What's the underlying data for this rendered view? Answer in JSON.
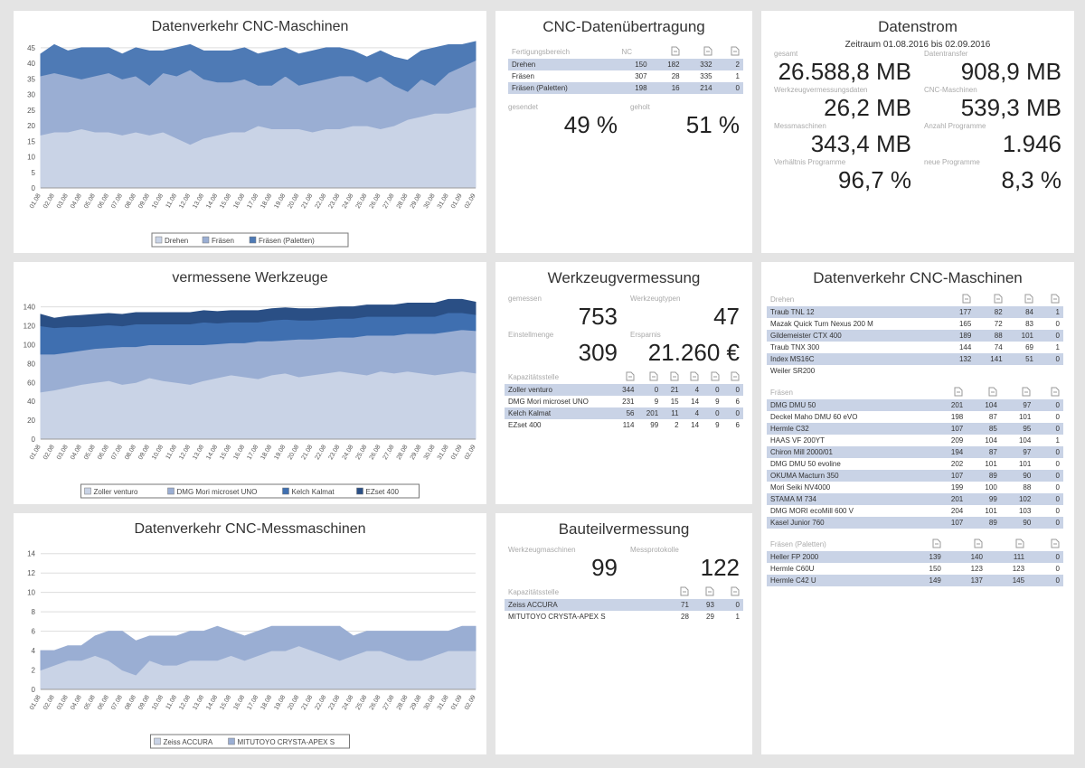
{
  "chart_data": [
    {
      "type": "area",
      "title": "Datenverkehr CNC-Maschinen",
      "categories": [
        "01.08",
        "02.08",
        "03.08",
        "04.08",
        "05.08",
        "06.08",
        "07.08",
        "08.08",
        "09.08",
        "10.08",
        "11.08",
        "12.08",
        "13.08",
        "14.08",
        "15.08",
        "16.08",
        "17.08",
        "18.08",
        "19.08",
        "20.08",
        "21.08",
        "22.08",
        "23.08",
        "24.08",
        "25.08",
        "26.08",
        "27.08",
        "28.08",
        "29.08",
        "30.08",
        "31.08",
        "01.09",
        "02.09"
      ],
      "series": [
        {
          "name": "Drehen",
          "color": "#c9d3e6",
          "values": [
            17,
            18,
            18,
            19,
            18,
            18,
            17,
            18,
            17,
            18,
            16,
            14,
            16,
            17,
            18,
            18,
            20,
            19,
            19,
            19,
            18,
            19,
            19,
            20,
            20,
            19,
            20,
            22,
            23,
            24,
            24,
            25,
            26
          ]
        },
        {
          "name": "Fräsen",
          "color": "#9aaed3",
          "values": [
            19,
            19,
            18,
            16,
            18,
            19,
            18,
            18,
            16,
            19,
            20,
            24,
            19,
            17,
            16,
            17,
            13,
            14,
            17,
            14,
            16,
            16,
            17,
            16,
            14,
            17,
            13,
            9,
            12,
            9,
            13,
            14,
            15
          ]
        },
        {
          "name": "Fräsen (Paletten)",
          "color": "#4e7ab5",
          "values": [
            7,
            9,
            8,
            10,
            9,
            8,
            8,
            9,
            11,
            7,
            9,
            8,
            9,
            10,
            10,
            10,
            10,
            11,
            9,
            10,
            10,
            10,
            9,
            8,
            8,
            8,
            9,
            10,
            9,
            12,
            9,
            7,
            6
          ]
        }
      ],
      "ylim": [
        0,
        47
      ],
      "yticks": [
        0,
        5,
        10,
        15,
        20,
        25,
        30,
        35,
        40,
        45
      ],
      "grid": true,
      "legend": "bottom"
    },
    {
      "type": "area",
      "title": "vermessene Werkzeuge",
      "categories": [
        "01.08",
        "02.08",
        "03.08",
        "04.08",
        "05.08",
        "06.08",
        "07.08",
        "08.08",
        "09.08",
        "10.08",
        "11.08",
        "12.08",
        "13.08",
        "14.08",
        "15.08",
        "16.08",
        "17.08",
        "18.08",
        "19.08",
        "20.08",
        "21.08",
        "22.08",
        "23.08",
        "24.08",
        "25.08",
        "26.08",
        "27.08",
        "28.08",
        "29.08",
        "30.08",
        "31.08",
        "01.09",
        "02.09"
      ],
      "series": [
        {
          "name": "Zoller venturo",
          "color": "#c9d3e6",
          "values": [
            50,
            52,
            55,
            58,
            60,
            62,
            58,
            60,
            65,
            62,
            60,
            58,
            62,
            65,
            68,
            66,
            64,
            68,
            70,
            66,
            68,
            70,
            72,
            70,
            68,
            72,
            70,
            72,
            70,
            68,
            70,
            72,
            70
          ]
        },
        {
          "name": "DMG Mori microset UNO",
          "color": "#9aaed3",
          "values": [
            40,
            38,
            37,
            36,
            36,
            35,
            40,
            38,
            35,
            38,
            40,
            42,
            38,
            36,
            34,
            36,
            40,
            36,
            35,
            40,
            38,
            37,
            36,
            38,
            42,
            38,
            40,
            40,
            42,
            44,
            44,
            44,
            45
          ]
        },
        {
          "name": "Kelch Kalmat",
          "color": "#3f6fb0",
          "values": [
            30,
            28,
            27,
            25,
            24,
            24,
            22,
            24,
            22,
            22,
            22,
            22,
            24,
            22,
            22,
            22,
            20,
            22,
            22,
            20,
            20,
            20,
            20,
            20,
            20,
            20,
            20,
            18,
            18,
            18,
            20,
            18,
            17
          ]
        },
        {
          "name": "EZset 400",
          "color": "#2a4f85",
          "values": [
            12,
            10,
            11,
            12,
            12,
            12,
            12,
            12,
            12,
            12,
            12,
            12,
            12,
            12,
            12,
            12,
            12,
            12,
            12,
            12,
            12,
            12,
            12,
            12,
            12,
            12,
            12,
            14,
            14,
            14,
            14,
            14,
            13
          ]
        }
      ],
      "ylim": [
        0,
        155
      ],
      "yticks": [
        0,
        20,
        40,
        60,
        80,
        100,
        120,
        140
      ],
      "grid": true,
      "legend": "bottom"
    },
    {
      "type": "area",
      "title": "Datenverkehr CNC-Messmaschinen",
      "categories": [
        "01.08",
        "02.08",
        "03.08",
        "04.08",
        "05.08",
        "06.08",
        "07.08",
        "08.08",
        "09.08",
        "10.08",
        "11.08",
        "12.08",
        "13.08",
        "14.08",
        "15.08",
        "16.08",
        "17.08",
        "18.08",
        "19.08",
        "20.08",
        "21.08",
        "22.08",
        "23.08",
        "24.08",
        "25.08",
        "26.08",
        "27.08",
        "28.08",
        "29.08",
        "30.08",
        "31.08",
        "01.09",
        "02.09"
      ],
      "series": [
        {
          "name": "Zeiss ACCURA",
          "color": "#c9d3e6",
          "values": [
            2,
            2.5,
            3,
            3,
            3.5,
            3,
            2,
            1.5,
            3,
            2.5,
            2.5,
            3,
            3,
            3,
            3.5,
            3,
            3.5,
            4,
            4,
            4.5,
            4,
            3.5,
            3,
            3.5,
            4,
            4,
            3.5,
            3,
            3,
            3.5,
            4,
            4,
            4
          ]
        },
        {
          "name": "MITUTOYO CRYSTA-APEX S",
          "color": "#9aaed3",
          "values": [
            2,
            1.5,
            1.5,
            1.5,
            2,
            3,
            4,
            3.5,
            2.5,
            3,
            3,
            3,
            3,
            3.5,
            2.5,
            2.5,
            2.5,
            2.5,
            2.5,
            2,
            2.5,
            3,
            3.5,
            2,
            2,
            2,
            2.5,
            3,
            3,
            2.5,
            2,
            2.5,
            2.5
          ]
        }
      ],
      "ylim": [
        0,
        15
      ],
      "yticks": [
        0,
        2,
        4,
        6,
        8,
        10,
        12,
        14
      ],
      "grid": true,
      "legend": "bottom"
    }
  ],
  "transfer": {
    "title": "CNC-Datenübertragung",
    "header": "Fertigungsbereich",
    "nc": "NC",
    "rows": [
      {
        "name": "Drehen",
        "values": [
          150,
          182,
          332,
          2
        ]
      },
      {
        "name": "Fräsen",
        "values": [
          307,
          28,
          335,
          1
        ]
      },
      {
        "name": "Fräsen (Paletten)",
        "values": [
          198,
          16,
          214,
          0
        ]
      }
    ],
    "kpis": [
      {
        "label": "gesendet",
        "value": "49 %"
      },
      {
        "label": "geholt",
        "value": "51 %"
      }
    ]
  },
  "stream": {
    "title": "Datenstrom",
    "period": "Zeitraum 01.08.2016 bis 02.09.2016",
    "kpis": [
      {
        "label": "gesamt",
        "value": "26.588,8 MB"
      },
      {
        "label": "Datentransfer",
        "value": "908,9 MB"
      },
      {
        "label": "Werkzeugvermessungsdaten",
        "value": "26,2 MB"
      },
      {
        "label": "CNC-Maschinen",
        "value": "539,3 MB"
      },
      {
        "label": "Messmaschinen",
        "value": "343,4 MB"
      },
      {
        "label": "Anzahl Programme",
        "value": "1.946"
      },
      {
        "label": "Verhältnis Programme",
        "value": "96,7 %"
      },
      {
        "label": "neue Programme",
        "value": "8,3 %"
      }
    ]
  },
  "tools": {
    "title": "Werkzeugvermessung",
    "kpis": [
      {
        "label": "gemessen",
        "value": "753"
      },
      {
        "label": "Werkzeugtypen",
        "value": "47"
      },
      {
        "label": "Einstellmenge",
        "value": "309"
      },
      {
        "label": "Ersparnis",
        "value": "21.260 €"
      }
    ],
    "header": "Kapazitätsstelle",
    "rows": [
      {
        "name": "Zoller venturo",
        "values": [
          344,
          0,
          21,
          4,
          0,
          0
        ]
      },
      {
        "name": "DMG Mori microset UNO",
        "values": [
          231,
          9,
          15,
          14,
          9,
          6
        ]
      },
      {
        "name": "Kelch Kalmat",
        "values": [
          56,
          201,
          11,
          4,
          0,
          0
        ]
      },
      {
        "name": "EZset 400",
        "values": [
          114,
          99,
          2,
          14,
          9,
          6
        ]
      }
    ]
  },
  "parts": {
    "title": "Bauteilvermessung",
    "kpis": [
      {
        "label": "Werkzeugmaschinen",
        "value": "99"
      },
      {
        "label": "Messprotokolle",
        "value": "122"
      }
    ],
    "header": "Kapazitätsstelle",
    "rows": [
      {
        "name": "Zeiss ACCURA",
        "values": [
          71,
          93,
          0
        ]
      },
      {
        "name": "MITUTOYO CRYSTA-APEX S",
        "values": [
          28,
          29,
          1
        ]
      }
    ]
  },
  "traffic": {
    "title": "Datenverkehr CNC-Maschinen",
    "sections": [
      {
        "name": "Drehen",
        "rows": [
          {
            "name": "Traub TNL 12",
            "values": [
              177,
              82,
              84,
              1
            ]
          },
          {
            "name": "Mazak Quick Turn Nexus 200 M",
            "values": [
              165,
              72,
              83,
              0
            ]
          },
          {
            "name": "Gildemeister CTX 400",
            "values": [
              189,
              88,
              101,
              0
            ]
          },
          {
            "name": "Traub TNX 300",
            "values": [
              144,
              74,
              69,
              1
            ]
          },
          {
            "name": "Index MS16C",
            "values": [
              132,
              141,
              51,
              0
            ]
          },
          {
            "name": "Weiler SR200",
            "values": []
          }
        ]
      },
      {
        "name": "Fräsen",
        "rows": [
          {
            "name": "DMG DMU 50",
            "values": [
              201,
              104,
              97,
              0
            ]
          },
          {
            "name": "Deckel Maho DMU 60 eVO",
            "values": [
              198,
              87,
              101,
              0
            ]
          },
          {
            "name": "Hermle C32",
            "values": [
              107,
              85,
              95,
              0
            ]
          },
          {
            "name": "HAAS VF 200YT",
            "values": [
              209,
              104,
              104,
              1
            ]
          },
          {
            "name": "Chiron Mill 2000/01",
            "values": [
              194,
              87,
              97,
              0
            ]
          },
          {
            "name": "DMG DMU 50 evoline",
            "values": [
              202,
              101,
              101,
              0
            ]
          },
          {
            "name": "OKUMA Macturn 350",
            "values": [
              107,
              89,
              90,
              0
            ]
          },
          {
            "name": "Mori Seiki NV4000",
            "values": [
              199,
              100,
              88,
              0
            ]
          },
          {
            "name": "STAMA M 734",
            "values": [
              201,
              99,
              102,
              0
            ]
          },
          {
            "name": "DMG MORI ecoMill 600 V",
            "values": [
              204,
              101,
              103,
              0
            ]
          },
          {
            "name": "Kasel Junior 760",
            "values": [
              107,
              89,
              90,
              0
            ]
          }
        ]
      },
      {
        "name": "Fräsen (Paletten)",
        "rows": [
          {
            "name": "Heller FP 2000",
            "values": [
              139,
              140,
              111,
              0
            ]
          },
          {
            "name": "Hermle C60U",
            "values": [
              150,
              123,
              123,
              0
            ]
          },
          {
            "name": "Hermle C42 U",
            "values": [
              149,
              137,
              145,
              0
            ]
          }
        ]
      }
    ]
  }
}
